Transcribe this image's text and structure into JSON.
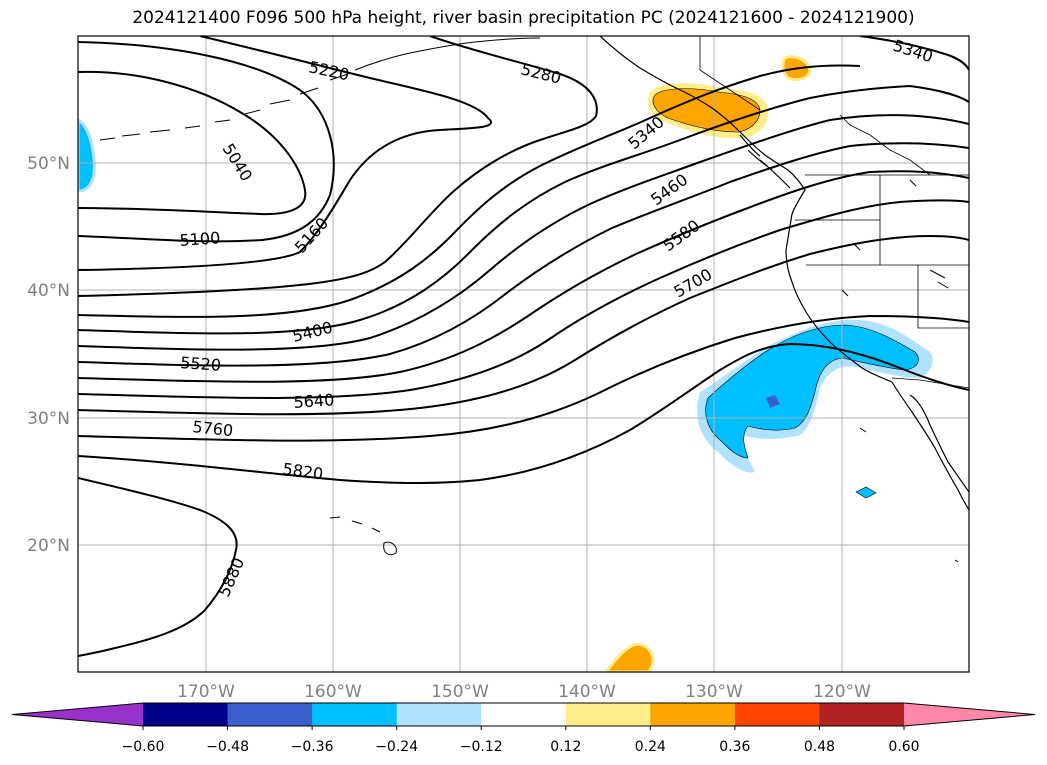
{
  "title": "2024121400 F096 500 hPa height, river basin precipitation PC (2024121600 - 2024121900)",
  "map": {
    "lat_labels": [
      "50°N",
      "40°N",
      "30°N",
      "20°N"
    ],
    "lon_labels": [
      "170°W",
      "160°W",
      "150°W",
      "140°W",
      "130°W",
      "120°W"
    ],
    "contour_labels": [
      "5220",
      "5280",
      "5340",
      "5040",
      "5100",
      "5160",
      "5340",
      "5460",
      "5580",
      "5700",
      "5400",
      "5520",
      "5640",
      "5760",
      "5820",
      "5880"
    ]
  },
  "colorbar": {
    "ticks": [
      "−0.60",
      "−0.48",
      "−0.36",
      "−0.24",
      "−0.12",
      "0.12",
      "0.24",
      "0.36",
      "0.48",
      "0.60"
    ],
    "colors": [
      "#9932cc",
      "#00008b",
      "#3a5fcd",
      "#00bfff",
      "#b0e2ff",
      "#ffffff",
      "#ffec8b",
      "#ffa500",
      "#ff4500",
      "#b22222",
      "#ff88aa"
    ]
  }
}
